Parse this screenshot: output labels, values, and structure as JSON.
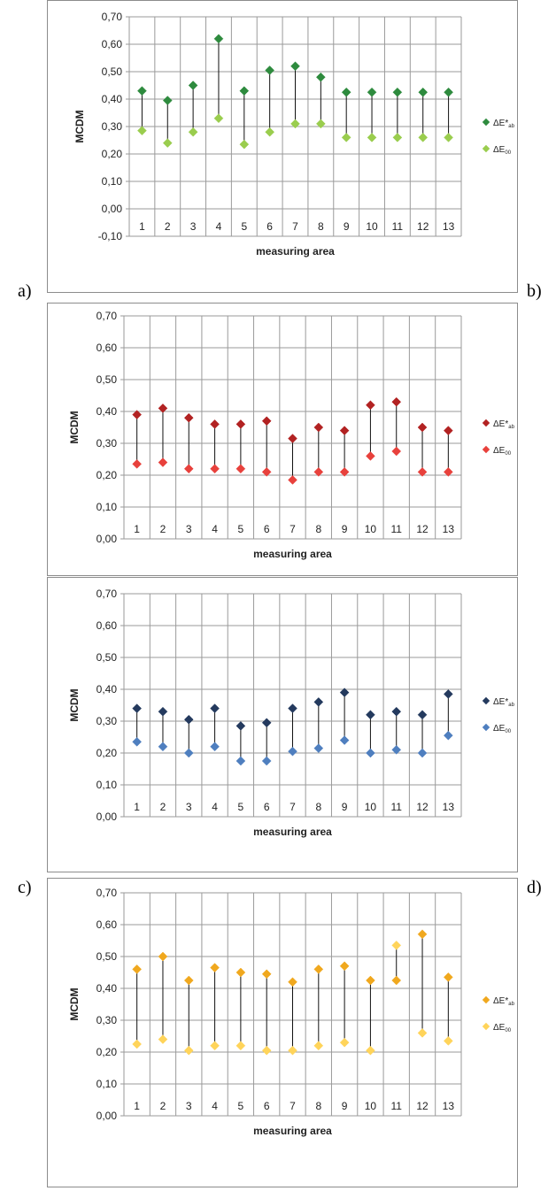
{
  "panel_labels": [
    "a)",
    "b)",
    "c)",
    "d)"
  ],
  "chart_data": [
    {
      "type": "scatter",
      "title": "",
      "xlabel": "measuring area",
      "ylabel": "MCDM",
      "categories": [
        "1",
        "2",
        "3",
        "4",
        "5",
        "6",
        "7",
        "8",
        "9",
        "10",
        "11",
        "12",
        "13"
      ],
      "ylim": [
        -0.1,
        0.7
      ],
      "ytick_labels": [
        "-0,10",
        "0,00",
        "0,10",
        "0,20",
        "0,30",
        "0,40",
        "0,50",
        "0,60",
        "0,70"
      ],
      "grid": true,
      "legend_position": "right",
      "series": [
        {
          "name": "ΔE*ab",
          "label_main": "ΔE*",
          "label_sub": "ab",
          "color": "#2e8b3e",
          "values": [
            0.43,
            0.395,
            0.45,
            0.62,
            0.43,
            0.505,
            0.52,
            0.48,
            0.425,
            0.425,
            0.425,
            0.425,
            0.425
          ]
        },
        {
          "name": "ΔE00",
          "label_main": "ΔE",
          "label_sub": "00",
          "color": "#9acd4e",
          "values": [
            0.285,
            0.24,
            0.28,
            0.33,
            0.235,
            0.28,
            0.31,
            0.31,
            0.26,
            0.26,
            0.26,
            0.26,
            0.26
          ]
        }
      ]
    },
    {
      "type": "scatter",
      "title": "",
      "xlabel": "measuring area",
      "ylabel": "MCDM",
      "categories": [
        "1",
        "2",
        "3",
        "4",
        "5",
        "6",
        "7",
        "8",
        "9",
        "10",
        "11",
        "12",
        "13"
      ],
      "ylim": [
        0.0,
        0.7
      ],
      "ytick_labels": [
        "0,00",
        "0,10",
        "0,20",
        "0,30",
        "0,40",
        "0,50",
        "0,60",
        "0,70"
      ],
      "grid": true,
      "legend_position": "right",
      "series": [
        {
          "name": "ΔE*ab",
          "label_main": "ΔE*",
          "label_sub": "ab",
          "color": "#b22222",
          "values": [
            0.39,
            0.41,
            0.38,
            0.36,
            0.36,
            0.37,
            0.315,
            0.35,
            0.34,
            0.42,
            0.43,
            0.35,
            0.34
          ]
        },
        {
          "name": "ΔE00",
          "label_main": "ΔE",
          "label_sub": "00",
          "color": "#e8413c",
          "values": [
            0.235,
            0.24,
            0.22,
            0.22,
            0.22,
            0.21,
            0.185,
            0.21,
            0.21,
            0.26,
            0.275,
            0.21,
            0.21
          ]
        }
      ]
    },
    {
      "type": "scatter",
      "title": "",
      "xlabel": "measuring area",
      "ylabel": "MCDM",
      "categories": [
        "1",
        "2",
        "3",
        "4",
        "5",
        "6",
        "7",
        "8",
        "9",
        "10",
        "11",
        "12",
        "13"
      ],
      "ylim": [
        0.0,
        0.7
      ],
      "ytick_labels": [
        "0,00",
        "0,10",
        "0,20",
        "0,30",
        "0,40",
        "0,50",
        "0,60",
        "0,70"
      ],
      "grid": true,
      "legend_position": "right",
      "series": [
        {
          "name": "ΔE*ab",
          "label_main": "ΔE*",
          "label_sub": "ab",
          "color": "#243a5e",
          "values": [
            0.34,
            0.33,
            0.305,
            0.34,
            0.285,
            0.295,
            0.34,
            0.36,
            0.39,
            0.32,
            0.33,
            0.32,
            0.385
          ]
        },
        {
          "name": "ΔE00",
          "label_main": "ΔE",
          "label_sub": "00",
          "color": "#4f7fbf",
          "values": [
            0.235,
            0.22,
            0.2,
            0.22,
            0.175,
            0.175,
            0.205,
            0.215,
            0.24,
            0.2,
            0.21,
            0.2,
            0.255
          ]
        }
      ]
    },
    {
      "type": "scatter",
      "title": "",
      "xlabel": "measuring area",
      "ylabel": "MCDM",
      "categories": [
        "1",
        "2",
        "3",
        "4",
        "5",
        "6",
        "7",
        "8",
        "9",
        "10",
        "11",
        "12",
        "13"
      ],
      "ylim": [
        0.0,
        0.7
      ],
      "ytick_labels": [
        "0,00",
        "0,10",
        "0,20",
        "0,30",
        "0,40",
        "0,50",
        "0,60",
        "0,70"
      ],
      "grid": true,
      "legend_position": "right",
      "series": [
        {
          "name": "ΔE*ab",
          "label_main": "ΔE*",
          "label_sub": "ab",
          "color": "#f0a81e",
          "values": [
            0.46,
            0.5,
            0.425,
            0.465,
            0.45,
            0.445,
            0.42,
            0.46,
            0.47,
            0.425,
            0.425,
            0.57,
            0.435
          ]
        },
        {
          "name": "ΔE00",
          "label_main": "ΔE",
          "label_sub": "00",
          "color": "#ffd45a",
          "values": [
            0.225,
            0.24,
            0.205,
            0.22,
            0.22,
            0.205,
            0.205,
            0.22,
            0.23,
            0.205,
            0.535,
            0.26,
            0.235
          ]
        }
      ]
    }
  ]
}
